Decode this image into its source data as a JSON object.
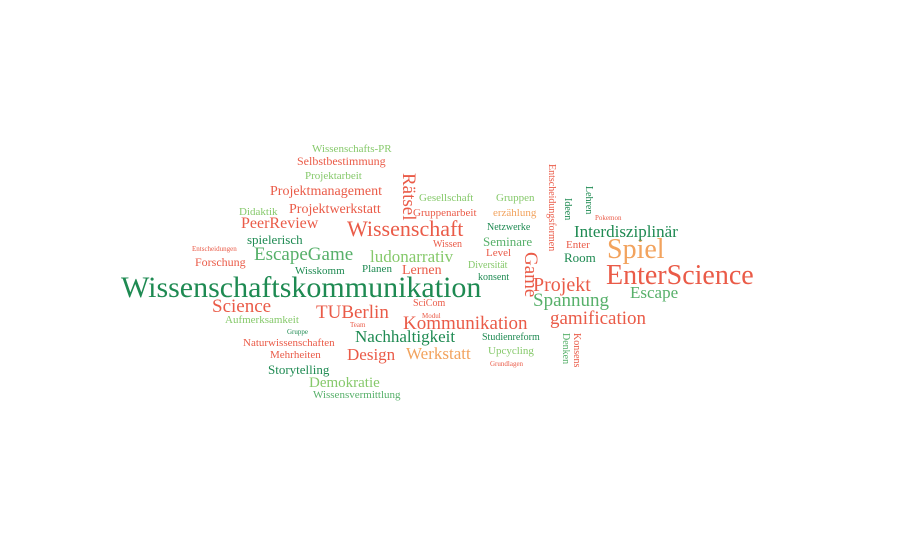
{
  "words": {
    "wissenschaftskommunikation": "Wissenschaftskommunikation",
    "enterscience": "EnterScience",
    "spiel": "Spiel",
    "wissenschaft": "Wissenschaft",
    "kommunikation": "Kommunikation",
    "projekt": "Projekt",
    "spannung": "Spannung",
    "gamification": "gamification",
    "escapegame": "EscapeGame",
    "tuberlin": "TUBerlin",
    "science": "Science",
    "nachhaltigkeit": "Nachhaltigkeit",
    "werkstatt": "Werkstatt",
    "design": "Design",
    "ludonarrativ": "ludonarrativ",
    "interdisziplinaer": "Interdisziplinär",
    "escape": "Escape",
    "game": "Game",
    "raetsel": "Rätsel",
    "peerreview": "PeerReview",
    "projektmanagement": "Projektmanagement",
    "projektwerkstatt": "Projektwerkstatt",
    "spielerisch": "spielerisch",
    "lernen": "Lernen",
    "forschung": "Forschung",
    "wisskomm": "Wisskomm",
    "planen": "Planen",
    "selbstbestimmung": "Selbstbestimmung",
    "wissenschafts_pr": "Wissenschafts-PR",
    "projektarbeit": "Projektarbeit",
    "didaktik": "Didaktik",
    "gesellschaft": "Gesellschaft",
    "gruppen": "Gruppen",
    "gruppenarbeit": "Gruppenarbeit",
    "erzaehlung": "erzählung",
    "netzwerke": "Netzwerke",
    "seminare": "Seminare",
    "wissen": "Wissen",
    "level": "Level",
    "diversitaet": "Diversität",
    "konsent": "konsent",
    "room": "Room",
    "enter": "Enter",
    "ideen": "Ideen",
    "lehren": "Lehren",
    "entscheidungsformen": "Entscheidungsformen",
    "pokemon": "Pokemon",
    "entscheidungen": "Entscheidungen",
    "aufmerksamkeit": "Aufmerksamkeit",
    "scicom": "SciCom",
    "modul": "Modul",
    "team": "Team",
    "gruppe": "Gruppe",
    "naturwissenschaften": "Naturwissenschaften",
    "mehrheiten": "Mehrheiten",
    "studienreform": "Studienreform",
    "upcycling": "Upcycling",
    "grundlagen": "Grundlagen",
    "storytelling": "Storytelling",
    "demokratie": "Demokratie",
    "wissensvermittlung": "Wissensvermittlung",
    "konsens": "Konsens",
    "denken": "Denken"
  },
  "colors": {
    "dark_green": "#1e8a52",
    "light_green": "#86c96b",
    "red": "#ea5b48",
    "orange": "#f2a35e",
    "mid_green": "#57b06a",
    "background": "#ffffff"
  }
}
